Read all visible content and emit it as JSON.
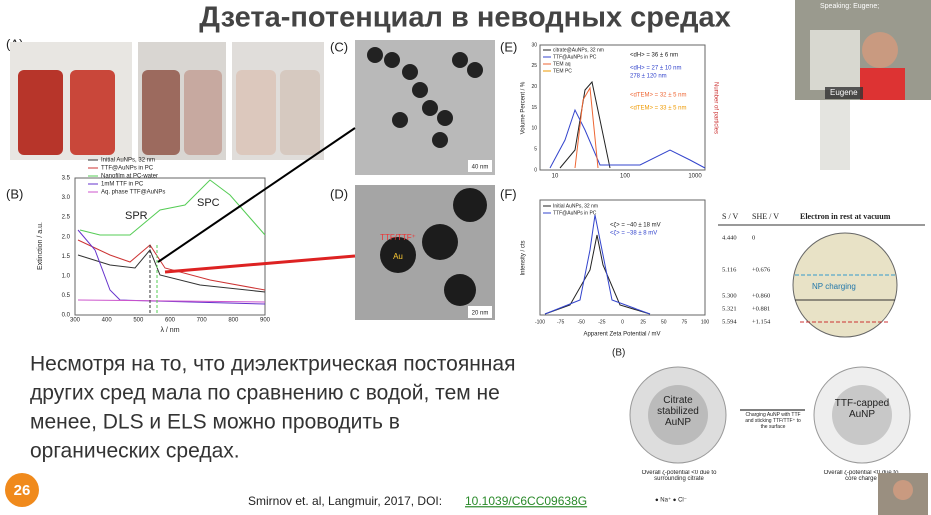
{
  "slide": {
    "title": "Дзета-потенциал в неводных средах",
    "number": "26",
    "body": [
      "Несмотря на то, что диэлектрическая постоянная",
      "других сред мала по сравнению с водой, тем не",
      "менее, DLS и ELS можно проводить в",
      "органических средах."
    ],
    "citation": "Smirnov et. al, Langmuir, 2017, DOI: ",
    "doi": "10.1039/C6CC09638G"
  },
  "call": {
    "speaking": "Speaking: Eugene;",
    "name": "Eugene"
  },
  "panels": {
    "A": {
      "label": "(A)"
    },
    "B": {
      "label": "(B)",
      "legend": [
        "Initial AuNPs, 32 nm",
        "TTF@AuNPs in PC",
        "Nanofilm at PC-water",
        "1mM TTF in PC",
        "Aq. phase TTF@AuNPs"
      ],
      "xlabel": "λ / nm",
      "ylabel": "Extinction / a.u.",
      "xticks": [
        "300",
        "400",
        "500",
        "600",
        "700",
        "800",
        "900"
      ],
      "yticks": [
        "0.0",
        "0.5",
        "1.0",
        "1.5",
        "2.0",
        "2.5",
        "3.0",
        "3.5"
      ],
      "spr": "SPR",
      "spc": "SPC"
    },
    "C": {
      "label": "(C)",
      "scale": "40 nm"
    },
    "D": {
      "label": "(D)",
      "shell": "TTF/TTF⁺",
      "core": "Au",
      "scale": "20 nm"
    },
    "E": {
      "label": "(E)",
      "legend": [
        "citrate@AuNPs, 32 nm",
        "TTF@AuNPs in PC",
        "TEM aq",
        "TEM PC"
      ],
      "ylabel": "Volume Percent / %",
      "y2label": "Number of particles",
      "xticks": [
        "10",
        "100",
        "1000"
      ],
      "yticks": [
        "0",
        "5",
        "10",
        "15",
        "20",
        "25",
        "30"
      ],
      "notes": [
        "<dH> = 36 ± 6 nm",
        "<dH> = 27 ± 10 nm",
        "278 ± 120 nm",
        "<dTEM> = 32 ± 5 nm",
        "<dTEM> = 33 ± 5 nm"
      ]
    },
    "F": {
      "label": "(F)",
      "legend": [
        "Initial AuNPs, 32 nm",
        "TTF@AuNPs in PC"
      ],
      "ylabel": "Intensity / cts",
      "xlabel": "Apparent Zeta Potential / mV",
      "xticks": [
        "-100",
        "-75",
        "-50",
        "-25",
        "0",
        "25",
        "50",
        "75",
        "100"
      ],
      "notes": [
        "<ζ> = −40 ± 18 mV",
        "<ζ> = −38 ± 8 mV"
      ]
    },
    "table": {
      "headers": [
        "S / V",
        "SHE / V",
        "Electron in rest at vacuum"
      ],
      "rows": [
        [
          "4.440",
          "0"
        ],
        [
          "5.116",
          "+0.676"
        ],
        [
          "5.300",
          "+0.860"
        ],
        [
          "5.321",
          "+0.881"
        ],
        [
          "5.594",
          "+1.154"
        ]
      ],
      "charging": "NP charging"
    },
    "scheme": {
      "label": "(B)",
      "left": "Citrate stabilized AuNP",
      "right": "TTF-capped AuNP",
      "arrow": "Charging AuNP with TTF and sticking TTF/TTF⁺ to the surface",
      "left_note": "Overall ζ-potential <0 due to surrounding citrate",
      "right_note": "Overall ζ-potential <0 due to core charge",
      "ions": "● Na⁺   ● Cl⁻"
    }
  }
}
